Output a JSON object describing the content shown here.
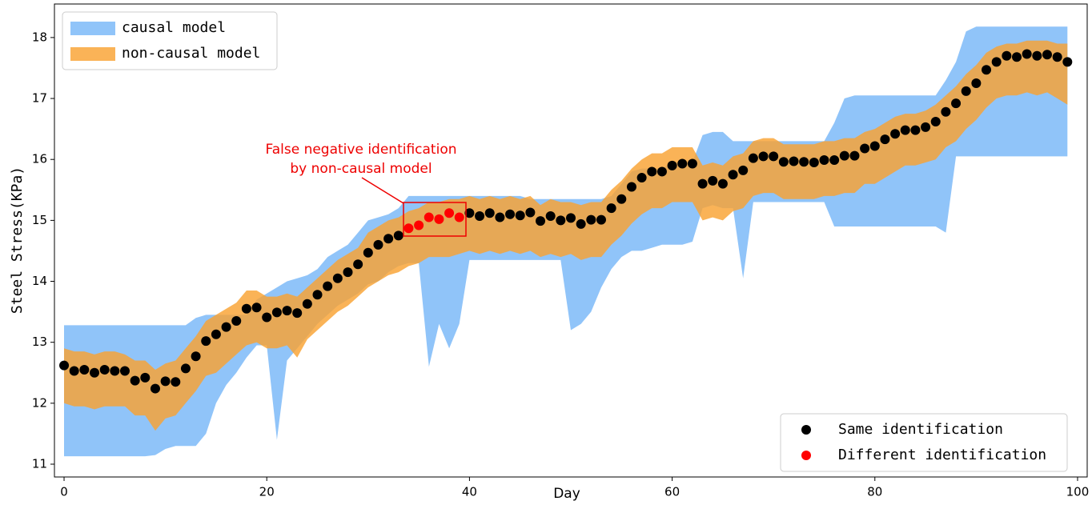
{
  "chart_data": {
    "type": "scatter",
    "xlabel": "Day",
    "ylabel": "Steel Stress(KPa)",
    "annotation": [
      "False negative identification",
      "by non-causal model"
    ],
    "annotation_color": "#ee0000",
    "xlim": [
      -0.95,
      100.95
    ],
    "ylim": [
      10.79,
      18.55
    ],
    "xticks": [
      0,
      20,
      40,
      60,
      80,
      100
    ],
    "yticks": [
      11,
      12,
      13,
      14,
      15,
      16,
      17,
      18
    ],
    "x": [
      0,
      1,
      2,
      3,
      4,
      5,
      6,
      7,
      8,
      9,
      10,
      11,
      12,
      13,
      14,
      15,
      16,
      17,
      18,
      19,
      20,
      21,
      22,
      23,
      24,
      25,
      26,
      27,
      28,
      29,
      30,
      31,
      32,
      33,
      34,
      35,
      36,
      37,
      38,
      39,
      40,
      41,
      42,
      43,
      44,
      45,
      46,
      47,
      48,
      49,
      50,
      51,
      52,
      53,
      54,
      55,
      56,
      57,
      58,
      59,
      60,
      61,
      62,
      63,
      64,
      65,
      66,
      67,
      68,
      69,
      70,
      71,
      72,
      73,
      74,
      75,
      76,
      77,
      78,
      79,
      80,
      81,
      82,
      83,
      84,
      85,
      86,
      87,
      88,
      89,
      90,
      91,
      92,
      93,
      94,
      95,
      96,
      97,
      98,
      99
    ],
    "bands": [
      {
        "name": "causal model",
        "color": "#90c4f9",
        "alpha": 1,
        "lower": [
          11.13,
          11.13,
          11.13,
          11.13,
          11.13,
          11.13,
          11.13,
          11.13,
          11.13,
          11.15,
          11.25,
          11.3,
          11.3,
          11.3,
          11.5,
          12.0,
          12.3,
          12.5,
          12.75,
          12.95,
          12.95,
          11.4,
          12.7,
          12.9,
          13.1,
          13.3,
          13.45,
          13.6,
          13.7,
          13.8,
          13.95,
          14.0,
          14.15,
          14.25,
          14.3,
          14.3,
          12.6,
          13.3,
          12.9,
          13.3,
          14.35,
          14.35,
          14.35,
          14.35,
          14.35,
          14.35,
          14.35,
          14.35,
          14.35,
          14.35,
          13.2,
          13.3,
          13.5,
          13.9,
          14.2,
          14.4,
          14.5,
          14.5,
          14.55,
          14.6,
          14.6,
          14.6,
          14.65,
          15.2,
          15.25,
          15.2,
          15.2,
          14.05,
          15.3,
          15.3,
          15.3,
          15.3,
          15.3,
          15.3,
          15.3,
          15.3,
          14.9,
          14.9,
          14.9,
          14.9,
          14.9,
          14.9,
          14.9,
          14.9,
          14.9,
          14.9,
          14.9,
          14.8,
          16.05,
          16.05,
          16.05,
          16.05,
          16.05,
          16.05,
          16.05,
          16.05,
          16.05,
          16.05,
          16.05,
          16.05
        ],
        "upper": [
          13.28,
          13.28,
          13.28,
          13.28,
          13.28,
          13.28,
          13.28,
          13.28,
          13.28,
          13.28,
          13.28,
          13.28,
          13.28,
          13.4,
          13.45,
          13.45,
          13.45,
          13.45,
          13.45,
          13.7,
          13.8,
          13.9,
          14.0,
          14.05,
          14.1,
          14.2,
          14.4,
          14.5,
          14.6,
          14.8,
          15.0,
          15.05,
          15.1,
          15.2,
          15.4,
          15.4,
          15.4,
          15.4,
          15.4,
          15.4,
          15.4,
          15.4,
          15.4,
          15.4,
          15.4,
          15.4,
          15.35,
          15.35,
          15.35,
          15.35,
          15.35,
          15.35,
          15.35,
          15.35,
          15.4,
          15.6,
          15.8,
          15.85,
          15.85,
          15.85,
          15.95,
          15.95,
          15.95,
          16.4,
          16.45,
          16.45,
          16.3,
          16.3,
          16.3,
          16.3,
          16.3,
          16.3,
          16.3,
          16.3,
          16.3,
          16.3,
          16.6,
          17.0,
          17.05,
          17.05,
          17.05,
          17.05,
          17.05,
          17.05,
          17.05,
          17.05,
          17.05,
          17.3,
          17.6,
          18.1,
          18.18,
          18.18,
          18.18,
          18.18,
          18.18,
          18.18,
          18.18,
          18.18,
          18.18,
          18.18
        ]
      },
      {
        "name": "non-causal model",
        "color": "#f9a232",
        "alpha": 0.82,
        "lower": [
          12.0,
          11.95,
          11.95,
          11.9,
          11.95,
          11.95,
          11.95,
          11.8,
          11.8,
          11.55,
          11.75,
          11.8,
          12.0,
          12.2,
          12.45,
          12.5,
          12.65,
          12.8,
          12.95,
          13.0,
          12.9,
          12.9,
          12.95,
          12.75,
          13.05,
          13.2,
          13.35,
          13.5,
          13.6,
          13.75,
          13.9,
          14.0,
          14.1,
          14.15,
          14.25,
          14.3,
          14.4,
          14.4,
          14.4,
          14.45,
          14.5,
          14.45,
          14.5,
          14.45,
          14.5,
          14.45,
          14.5,
          14.4,
          14.45,
          14.4,
          14.45,
          14.35,
          14.4,
          14.4,
          14.6,
          14.75,
          14.95,
          15.1,
          15.2,
          15.2,
          15.3,
          15.3,
          15.3,
          15.0,
          15.05,
          15.0,
          15.15,
          15.2,
          15.4,
          15.45,
          15.45,
          15.35,
          15.35,
          15.35,
          15.35,
          15.4,
          15.4,
          15.45,
          15.45,
          15.6,
          15.6,
          15.7,
          15.8,
          15.9,
          15.9,
          15.95,
          16.0,
          16.2,
          16.3,
          16.5,
          16.65,
          16.85,
          17.0,
          17.05,
          17.05,
          17.1,
          17.05,
          17.1,
          17.0,
          16.9
        ],
        "upper": [
          12.9,
          12.85,
          12.85,
          12.8,
          12.85,
          12.85,
          12.8,
          12.7,
          12.7,
          12.55,
          12.65,
          12.7,
          12.9,
          13.1,
          13.35,
          13.45,
          13.55,
          13.65,
          13.85,
          13.85,
          13.75,
          13.75,
          13.8,
          13.75,
          13.9,
          14.05,
          14.2,
          14.35,
          14.45,
          14.55,
          14.8,
          14.9,
          15.0,
          15.05,
          15.15,
          15.2,
          15.3,
          15.3,
          15.35,
          15.35,
          15.4,
          15.35,
          15.4,
          15.35,
          15.4,
          15.35,
          15.4,
          15.25,
          15.35,
          15.3,
          15.3,
          15.25,
          15.3,
          15.3,
          15.5,
          15.65,
          15.85,
          16.0,
          16.1,
          16.1,
          16.2,
          16.2,
          16.2,
          15.9,
          15.95,
          15.9,
          16.05,
          16.1,
          16.3,
          16.35,
          16.35,
          16.25,
          16.25,
          16.25,
          16.25,
          16.3,
          16.3,
          16.35,
          16.35,
          16.45,
          16.5,
          16.6,
          16.7,
          16.75,
          16.75,
          16.8,
          16.9,
          17.05,
          17.2,
          17.4,
          17.55,
          17.75,
          17.85,
          17.9,
          17.9,
          17.95,
          17.95,
          17.95,
          17.9,
          17.9
        ]
      }
    ],
    "series": [
      {
        "name": "Same identification",
        "color": "#000000",
        "x": [
          0,
          1,
          2,
          3,
          4,
          5,
          6,
          7,
          8,
          9,
          10,
          11,
          12,
          13,
          14,
          15,
          16,
          17,
          18,
          19,
          20,
          21,
          22,
          23,
          24,
          25,
          26,
          27,
          28,
          29,
          30,
          31,
          32,
          33,
          40,
          41,
          42,
          43,
          44,
          45,
          46,
          47,
          48,
          49,
          50,
          51,
          52,
          53,
          54,
          55,
          56,
          57,
          58,
          59,
          60,
          61,
          62,
          63,
          64,
          65,
          66,
          67,
          68,
          69,
          70,
          71,
          72,
          73,
          74,
          75,
          76,
          77,
          78,
          79,
          80,
          81,
          82,
          83,
          84,
          85,
          86,
          87,
          88,
          89,
          90,
          91,
          92,
          93,
          94,
          95,
          96,
          97,
          98,
          99
        ],
        "values": [
          12.62,
          12.53,
          12.55,
          12.5,
          12.55,
          12.53,
          12.53,
          12.37,
          12.42,
          12.24,
          12.36,
          12.35,
          12.57,
          12.77,
          13.02,
          13.13,
          13.25,
          13.35,
          13.55,
          13.57,
          13.41,
          13.49,
          13.52,
          13.48,
          13.63,
          13.78,
          13.92,
          14.05,
          14.15,
          14.28,
          14.47,
          14.6,
          14.7,
          14.75,
          15.12,
          15.07,
          15.12,
          15.05,
          15.1,
          15.08,
          15.13,
          14.99,
          15.07,
          15.0,
          15.04,
          14.94,
          15.01,
          15.01,
          15.2,
          15.35,
          15.55,
          15.7,
          15.8,
          15.8,
          15.9,
          15.93,
          15.93,
          15.6,
          15.65,
          15.6,
          15.75,
          15.82,
          16.02,
          16.05,
          16.05,
          15.96,
          15.97,
          15.96,
          15.95,
          15.99,
          15.99,
          16.06,
          16.06,
          16.18,
          16.22,
          16.33,
          16.42,
          16.48,
          16.48,
          16.53,
          16.62,
          16.78,
          16.92,
          17.12,
          17.25,
          17.47,
          17.6,
          17.7,
          17.68,
          17.73,
          17.7,
          17.72,
          17.68,
          17.6
        ]
      },
      {
        "name": "Different identification",
        "color": "#ff0000",
        "x": [
          34,
          35,
          36,
          37,
          38,
          39
        ],
        "values": [
          14.87,
          14.92,
          15.05,
          15.02,
          15.12,
          15.05
        ]
      }
    ]
  }
}
